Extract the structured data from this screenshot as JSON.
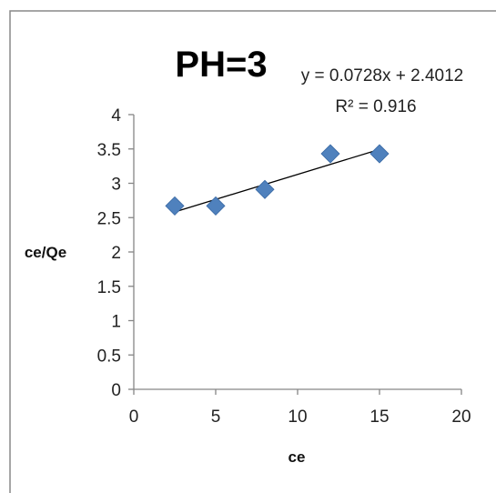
{
  "chart_data": {
    "type": "scatter",
    "title": "PH=3",
    "xlabel": "ce",
    "ylabel": "ce/Qe",
    "xlim": [
      0,
      20
    ],
    "ylim": [
      0,
      4
    ],
    "x_ticks": [
      "0",
      "5",
      "10",
      "15",
      "20"
    ],
    "y_ticks": [
      "0",
      "0.5",
      "1",
      "1.5",
      "2",
      "2.5",
      "3",
      "3.5",
      "4"
    ],
    "grid": false,
    "legend": "none",
    "series": [
      {
        "marker": "diamond",
        "color": "#4F81BD",
        "points": [
          {
            "x": 2.5,
            "y": 2.67
          },
          {
            "x": 5,
            "y": 2.67
          },
          {
            "x": 8,
            "y": 2.91
          },
          {
            "x": 12,
            "y": 3.43
          },
          {
            "x": 15,
            "y": 3.43
          }
        ]
      }
    ],
    "trendline": {
      "type": "linear",
      "slope": 0.0728,
      "intercept": 2.4012,
      "x_range": [
        2.5,
        15
      ],
      "equation_text": "y = 0.0728x + 2.4012",
      "r2_text": "R² = 0.916"
    }
  },
  "colors": {
    "marker": "#4F81BD",
    "trendline": "#000000",
    "axis": "#868686",
    "frame": "#888888"
  }
}
